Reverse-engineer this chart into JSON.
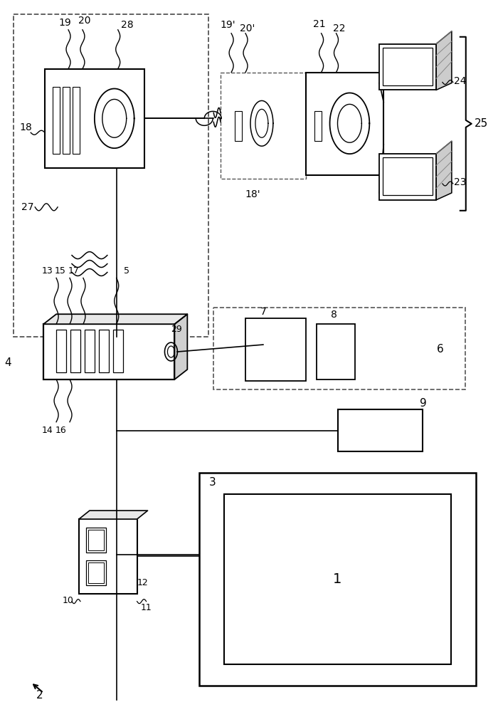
{
  "bg": "#ffffff",
  "lc": "#000000",
  "dc": "#666666",
  "fw": 7.0,
  "fh": 10.0
}
